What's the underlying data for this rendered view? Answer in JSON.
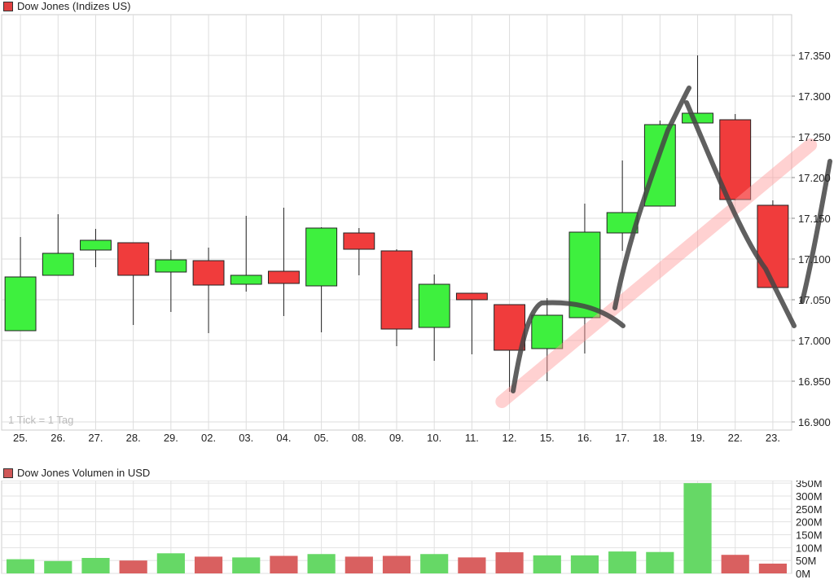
{
  "price_chart": {
    "title": "Dow Jones (Indizes US)",
    "tick_note": "1 Tick = 1 Tag",
    "colors": {
      "up": "#3ef03e",
      "down": "#f03c3c",
      "legend_swatch": "#e04040",
      "grid": "#dddddd",
      "wick": "#222222"
    },
    "chart_data": {
      "type": "candlestick",
      "categories": [
        "25.",
        "26.",
        "27.",
        "28.",
        "29.",
        "02.",
        "03.",
        "04.",
        "05.",
        "08.",
        "09.",
        "10.",
        "11.",
        "12.",
        "15.",
        "16.",
        "17.",
        "18.",
        "19.",
        "22.",
        "23."
      ],
      "candles": [
        {
          "open": 17012,
          "high": 17127,
          "low": 17012,
          "close": 17078
        },
        {
          "open": 17080,
          "high": 17155,
          "low": 17080,
          "close": 17107
        },
        {
          "open": 17111,
          "high": 17137,
          "low": 17090,
          "close": 17123
        },
        {
          "open": 17120,
          "high": 17120,
          "low": 17019,
          "close": 17080
        },
        {
          "open": 17084,
          "high": 17111,
          "low": 17035,
          "close": 17099
        },
        {
          "open": 17098,
          "high": 17114,
          "low": 17009,
          "close": 17068
        },
        {
          "open": 17069,
          "high": 17153,
          "low": 17060,
          "close": 17080
        },
        {
          "open": 17085,
          "high": 17163,
          "low": 17030,
          "close": 17070
        },
        {
          "open": 17067,
          "high": 17139,
          "low": 17010,
          "close": 17138
        },
        {
          "open": 17132,
          "high": 17138,
          "low": 17080,
          "close": 17112
        },
        {
          "open": 17110,
          "high": 17112,
          "low": 16993,
          "close": 17014
        },
        {
          "open": 17016,
          "high": 17081,
          "low": 16975,
          "close": 17069
        },
        {
          "open": 17058,
          "high": 17058,
          "low": 16983,
          "close": 17050
        },
        {
          "open": 17044,
          "high": 17044,
          "low": 16937,
          "close": 16988
        },
        {
          "open": 16990,
          "high": 17052,
          "low": 16950,
          "close": 17031
        },
        {
          "open": 17028,
          "high": 17168,
          "low": 16984,
          "close": 17133
        },
        {
          "open": 17132,
          "high": 17221,
          "low": 17110,
          "close": 17157
        },
        {
          "open": 17165,
          "high": 17270,
          "low": 17165,
          "close": 17265
        },
        {
          "open": 17267,
          "high": 17350,
          "low": 17267,
          "close": 17279
        },
        {
          "open": 17271,
          "high": 17278,
          "low": 17172,
          "close": 17173
        },
        {
          "open": 17166,
          "high": 17172,
          "low": 17065,
          "close": 17065
        }
      ],
      "ylim": [
        16890,
        17400
      ],
      "yticks": [
        "16.900",
        "16.950",
        "17.000",
        "17.050",
        "17.100",
        "17.150",
        "17.200",
        "17.250",
        "17.300",
        "17.350"
      ],
      "ytick_values": [
        16900,
        16950,
        17000,
        17050,
        17100,
        17150,
        17200,
        17250,
        17300,
        17350
      ],
      "grid": true,
      "trendline": {
        "x_from": 13.3,
        "y_from": 16925,
        "x_to": 21.5,
        "y_to": 17240
      }
    }
  },
  "volume_chart": {
    "title": "Dow Jones Volumen in USD",
    "colors": {
      "up": "#66d866",
      "down": "#d96060",
      "legend_swatch": "#d05858"
    },
    "chart_data": {
      "type": "bar",
      "categories": [
        "25.",
        "26.",
        "27.",
        "28.",
        "29.",
        "02.",
        "03.",
        "04.",
        "05.",
        "08.",
        "09.",
        "10.",
        "11.",
        "12.",
        "15.",
        "16.",
        "17.",
        "18.",
        "19.",
        "22.",
        "23."
      ],
      "values": [
        55,
        48,
        60,
        50,
        78,
        65,
        62,
        68,
        75,
        65,
        68,
        75,
        62,
        82,
        70,
        70,
        85,
        83,
        350,
        72,
        38
      ],
      "direction": [
        "up",
        "up",
        "up",
        "down",
        "up",
        "down",
        "up",
        "down",
        "up",
        "down",
        "down",
        "up",
        "down",
        "down",
        "up",
        "up",
        "up",
        "up",
        "up",
        "down",
        "down"
      ],
      "ylim": [
        0,
        360
      ],
      "yticks": [
        "350M",
        "300M",
        "250M",
        "200M",
        "150M",
        "100M",
        "50M",
        "0M"
      ],
      "ytick_values": [
        350,
        300,
        250,
        200,
        150,
        100,
        50,
        0
      ],
      "unit": "M USD"
    }
  }
}
